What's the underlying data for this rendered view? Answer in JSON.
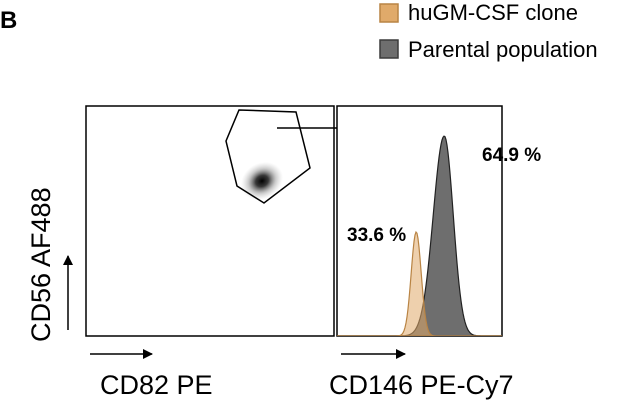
{
  "panel_label": "B",
  "legend": [
    {
      "label": "huGM-CSF clone",
      "color": "#e0aa6a",
      "edge": "#b98444"
    },
    {
      "label": "Parental population",
      "color": "#6e6e6e",
      "edge": "#3c3c3c"
    }
  ],
  "colors": {
    "clone_fill": "#e0aa6a",
    "parental_fill": "#6e6e6e",
    "overlap_fill": "#6a5240"
  },
  "chart_data": [
    {
      "type": "scatter",
      "subtype": "density-plot with polygon gate",
      "xlabel": "CD82 PE",
      "ylabel": "CD56 AF488",
      "gate": "polygon",
      "population": "single dense cluster inside gate"
    },
    {
      "type": "area",
      "subtype": "overlaid histograms",
      "xlabel": "CD146 PE-Cy7",
      "series": [
        {
          "name": "huGM-CSF clone",
          "annotation": "33.6 %",
          "peak_relative_position": 0.48,
          "peak_relative_height": 0.52
        },
        {
          "name": "Parental population",
          "annotation": "64.9 %",
          "peak_relative_position": 0.65,
          "peak_relative_height": 1.0
        }
      ]
    }
  ]
}
